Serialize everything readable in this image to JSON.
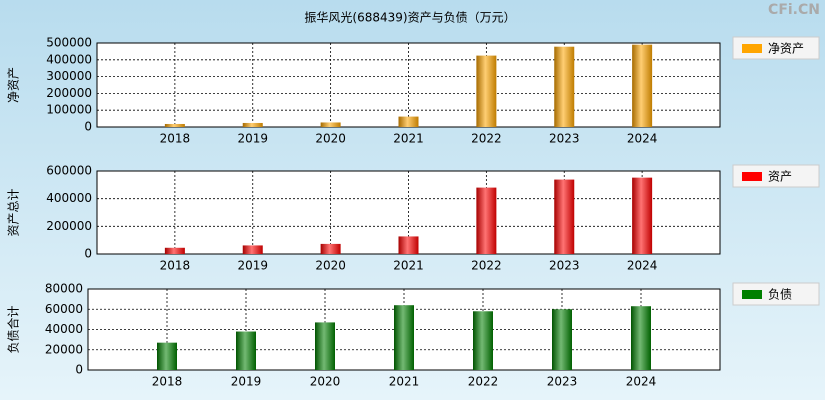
{
  "watermark": "CFi.CN",
  "chart_data": [
    {
      "type": "bar",
      "title": "振华风光(688439)资产与负债（万元）",
      "ylabel": "净资产",
      "categories": [
        "2018",
        "2019",
        "2020",
        "2021",
        "2022",
        "2023",
        "2024"
      ],
      "series": [
        {
          "name": "净资产",
          "color": "#ffa500",
          "values": [
            18000,
            24000,
            27000,
            62000,
            425000,
            478000,
            490000
          ]
        }
      ],
      "ylim": [
        0,
        500000
      ],
      "yticks": [
        0,
        100000,
        200000,
        300000,
        400000,
        500000
      ],
      "grid": true
    },
    {
      "type": "bar",
      "ylabel": "资产总计",
      "categories": [
        "2018",
        "2019",
        "2020",
        "2021",
        "2022",
        "2023",
        "2024"
      ],
      "series": [
        {
          "name": "资产",
          "color": "#ff0000",
          "values": [
            45000,
            62000,
            73000,
            127000,
            480000,
            538000,
            552000
          ]
        }
      ],
      "ylim": [
        0,
        600000
      ],
      "yticks": [
        0,
        200000,
        400000,
        600000
      ],
      "grid": true
    },
    {
      "type": "bar",
      "ylabel": "负债合计",
      "categories": [
        "2018",
        "2019",
        "2020",
        "2021",
        "2022",
        "2023",
        "2024"
      ],
      "series": [
        {
          "name": "负债",
          "color": "#008000",
          "values": [
            27000,
            38000,
            47000,
            64000,
            58000,
            60000,
            63000
          ]
        }
      ],
      "ylim": [
        0,
        80000
      ],
      "yticks": [
        0,
        20000,
        40000,
        60000,
        80000
      ],
      "grid": true
    }
  ]
}
